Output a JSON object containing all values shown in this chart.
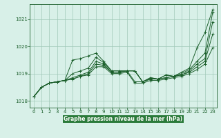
{
  "bg_color": "#d8f0e8",
  "plot_bg_color": "#d8f0e8",
  "grid_color": "#a0c8b8",
  "line_color": "#1a5e2a",
  "xlabel": "Graphe pression niveau de la mer (hPa)",
  "xlabel_color": "#1a5e2a",
  "xlabel_bg": "#2a7a3a",
  "ylim": [
    1017.75,
    1021.55
  ],
  "xlim": [
    -0.5,
    23.5
  ],
  "yticks": [
    1018,
    1019,
    1020,
    1021
  ],
  "xticks": [
    0,
    1,
    2,
    3,
    4,
    5,
    6,
    7,
    8,
    9,
    10,
    11,
    12,
    13,
    14,
    15,
    16,
    17,
    18,
    19,
    20,
    21,
    22,
    23
  ],
  "series": [
    [
      1018.15,
      1018.5,
      1018.65,
      1018.7,
      1018.75,
      1019.5,
      1019.55,
      1019.65,
      1019.75,
      1019.45,
      1019.1,
      1019.1,
      1019.1,
      1019.1,
      1018.7,
      1018.85,
      1018.8,
      1018.95,
      1018.9,
      1019.05,
      1019.2,
      1019.95,
      1020.5,
      1021.35
    ],
    [
      1018.15,
      1018.5,
      1018.65,
      1018.7,
      1018.75,
      1019.0,
      1019.1,
      1019.2,
      1019.6,
      1019.4,
      1019.1,
      1019.1,
      1019.1,
      1019.1,
      1018.7,
      1018.85,
      1018.8,
      1018.95,
      1018.9,
      1019.0,
      1019.15,
      1019.45,
      1019.75,
      1021.25
    ],
    [
      1018.15,
      1018.5,
      1018.65,
      1018.7,
      1018.75,
      1018.85,
      1018.95,
      1019.05,
      1019.45,
      1019.35,
      1019.05,
      1019.05,
      1019.1,
      1019.1,
      1018.7,
      1018.8,
      1018.8,
      1018.85,
      1018.9,
      1018.95,
      1019.1,
      1019.35,
      1019.55,
      1020.9
    ],
    [
      1018.15,
      1018.5,
      1018.65,
      1018.7,
      1018.75,
      1018.8,
      1018.9,
      1019.0,
      1019.35,
      1019.3,
      1019.05,
      1019.05,
      1019.1,
      1018.7,
      1018.7,
      1018.8,
      1018.8,
      1018.85,
      1018.9,
      1018.95,
      1019.05,
      1019.25,
      1019.45,
      1020.45
    ],
    [
      1018.15,
      1018.5,
      1018.65,
      1018.7,
      1018.75,
      1018.8,
      1018.9,
      1018.95,
      1019.25,
      1019.25,
      1019.0,
      1019.0,
      1019.05,
      1018.65,
      1018.65,
      1018.75,
      1018.75,
      1018.8,
      1018.85,
      1018.9,
      1019.0,
      1019.15,
      1019.35,
      1019.95
    ]
  ],
  "figsize": [
    3.2,
    2.0
  ],
  "dpi": 100
}
